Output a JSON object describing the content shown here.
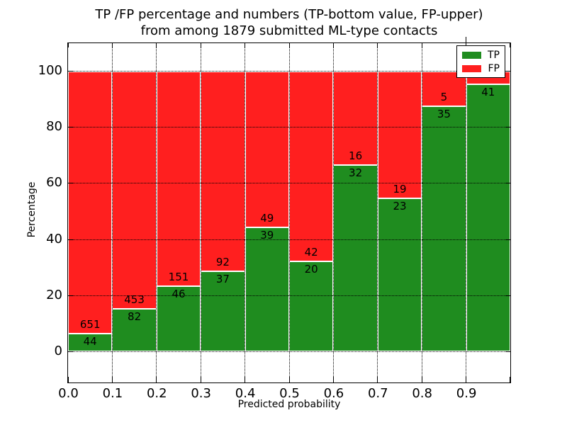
{
  "chart_data": {
    "type": "bar",
    "stacked": true,
    "title_line1": "TP /FP percentage and numbers (TP-bottom value, FP-upper)",
    "title_line2": "from among 1879 submitted ML-type contacts",
    "xlabel": "Predicted probability",
    "ylabel": "Percentage",
    "total_submitted": 1879,
    "xlim": [
      0.0,
      1.0
    ],
    "ylim": [
      -11,
      110
    ],
    "x_tick_labels": [
      "0.0",
      "0.1",
      "0.2",
      "0.3",
      "0.4",
      "0.5",
      "0.6",
      "0.7",
      "0.8",
      "0.9"
    ],
    "y_ticks": [
      0,
      20,
      40,
      60,
      80,
      100
    ],
    "y_tick_labels": [
      "0",
      "20",
      "40",
      "60",
      "80",
      "100"
    ],
    "grid_style": "dotted",
    "grid_on": true,
    "colors": {
      "tp": "#1f8c1f",
      "fp": "#ff1f1f",
      "grid": "#000000",
      "text": "#000000"
    },
    "legend": {
      "position": "upper-right",
      "entries": [
        {
          "label": "TP",
          "color": "#1f8c1f"
        },
        {
          "label": "FP",
          "color": "#ff1f1f"
        }
      ]
    },
    "bins": [
      {
        "x_range": [
          0.0,
          0.1
        ],
        "tp": 44,
        "fp": 651,
        "tp_pct": 6.33,
        "tp_label": "44",
        "fp_label": "651"
      },
      {
        "x_range": [
          0.1,
          0.2
        ],
        "tp": 82,
        "fp": 453,
        "tp_pct": 15.33,
        "tp_label": "82",
        "fp_label": "453"
      },
      {
        "x_range": [
          0.2,
          0.3
        ],
        "tp": 46,
        "fp": 151,
        "tp_pct": 23.35,
        "tp_label": "46",
        "fp_label": "151"
      },
      {
        "x_range": [
          0.3,
          0.4
        ],
        "tp": 37,
        "fp": 92,
        "tp_pct": 28.68,
        "tp_label": "37",
        "fp_label": "92"
      },
      {
        "x_range": [
          0.4,
          0.5
        ],
        "tp": 39,
        "fp": 49,
        "tp_pct": 44.32,
        "tp_label": "39",
        "fp_label": "49"
      },
      {
        "x_range": [
          0.5,
          0.6
        ],
        "tp": 20,
        "fp": 42,
        "tp_pct": 32.26,
        "tp_label": "20",
        "fp_label": "42"
      },
      {
        "x_range": [
          0.6,
          0.7
        ],
        "tp": 32,
        "fp": 16,
        "tp_pct": 66.67,
        "tp_label": "32",
        "fp_label": "16"
      },
      {
        "x_range": [
          0.7,
          0.8
        ],
        "tp": 23,
        "fp": 19,
        "tp_pct": 54.76,
        "tp_label": "23",
        "fp_label": "19"
      },
      {
        "x_range": [
          0.8,
          0.9
        ],
        "tp": 35,
        "fp": 5,
        "tp_pct": 87.5,
        "tp_label": "35",
        "fp_label": "5"
      },
      {
        "x_range": [
          0.9,
          1.0
        ],
        "tp": 41,
        "fp": 2,
        "tp_pct": 95.35,
        "tp_label": "41",
        "fp_label": ""
      }
    ]
  }
}
